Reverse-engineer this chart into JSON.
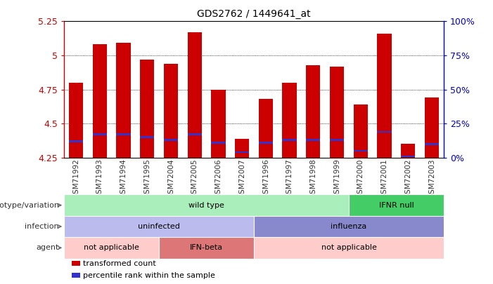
{
  "title": "GDS2762 / 1449641_at",
  "samples": [
    "GSM71992",
    "GSM71993",
    "GSM71994",
    "GSM71995",
    "GSM72004",
    "GSM72005",
    "GSM72006",
    "GSM72007",
    "GSM71996",
    "GSM71997",
    "GSM71998",
    "GSM71999",
    "GSM72000",
    "GSM72001",
    "GSM72002",
    "GSM72003"
  ],
  "bar_tops": [
    4.8,
    5.08,
    5.09,
    4.97,
    4.94,
    5.17,
    4.75,
    4.39,
    4.68,
    4.8,
    4.93,
    4.92,
    4.64,
    5.16,
    4.35,
    4.69
  ],
  "bar_bottoms": [
    4.25,
    4.25,
    4.25,
    4.25,
    4.25,
    4.25,
    4.25,
    4.25,
    4.25,
    4.25,
    4.25,
    4.25,
    4.25,
    4.25,
    4.25,
    4.25
  ],
  "blue_marker_vals": [
    4.37,
    4.42,
    4.42,
    4.4,
    4.38,
    4.42,
    4.36,
    4.29,
    4.36,
    4.38,
    4.38,
    4.38,
    4.3,
    4.44,
    4.26,
    4.35
  ],
  "bar_color": "#cc0000",
  "blue_color": "#3333cc",
  "ymin": 4.25,
  "ymax": 5.25,
  "yticks": [
    4.25,
    4.5,
    4.75,
    5.0,
    5.25
  ],
  "ytick_labels": [
    "4.25",
    "4.5",
    "4.75",
    "5",
    "5.25"
  ],
  "y2ticks": [
    0,
    25,
    50,
    75,
    100
  ],
  "y2labels": [
    "0%",
    "25%",
    "50%",
    "75%",
    "100%"
  ],
  "grid_vals": [
    4.5,
    4.75,
    5.0
  ],
  "bg_color": "#ffffff",
  "plot_bg": "#ffffff",
  "annotation_rows": [
    {
      "label": "genotype/variation",
      "segments": [
        {
          "start": 0,
          "end": 12,
          "text": "wild type",
          "color": "#aaeebb"
        },
        {
          "start": 12,
          "end": 16,
          "text": "IFNR null",
          "color": "#44cc66"
        }
      ]
    },
    {
      "label": "infection",
      "segments": [
        {
          "start": 0,
          "end": 8,
          "text": "uninfected",
          "color": "#bbbbee"
        },
        {
          "start": 8,
          "end": 16,
          "text": "influenza",
          "color": "#8888cc"
        }
      ]
    },
    {
      "label": "agent",
      "segments": [
        {
          "start": 0,
          "end": 4,
          "text": "not applicable",
          "color": "#ffcccc"
        },
        {
          "start": 4,
          "end": 8,
          "text": "IFN-beta",
          "color": "#dd7777"
        },
        {
          "start": 8,
          "end": 16,
          "text": "not applicable",
          "color": "#ffcccc"
        }
      ]
    }
  ],
  "legend_items": [
    {
      "color": "#cc0000",
      "label": "transformed count"
    },
    {
      "color": "#3333cc",
      "label": "percentile rank within the sample"
    }
  ],
  "row_labels_fontsize": 8,
  "tick_label_fontsize": 7.5,
  "annot_fontsize": 8
}
